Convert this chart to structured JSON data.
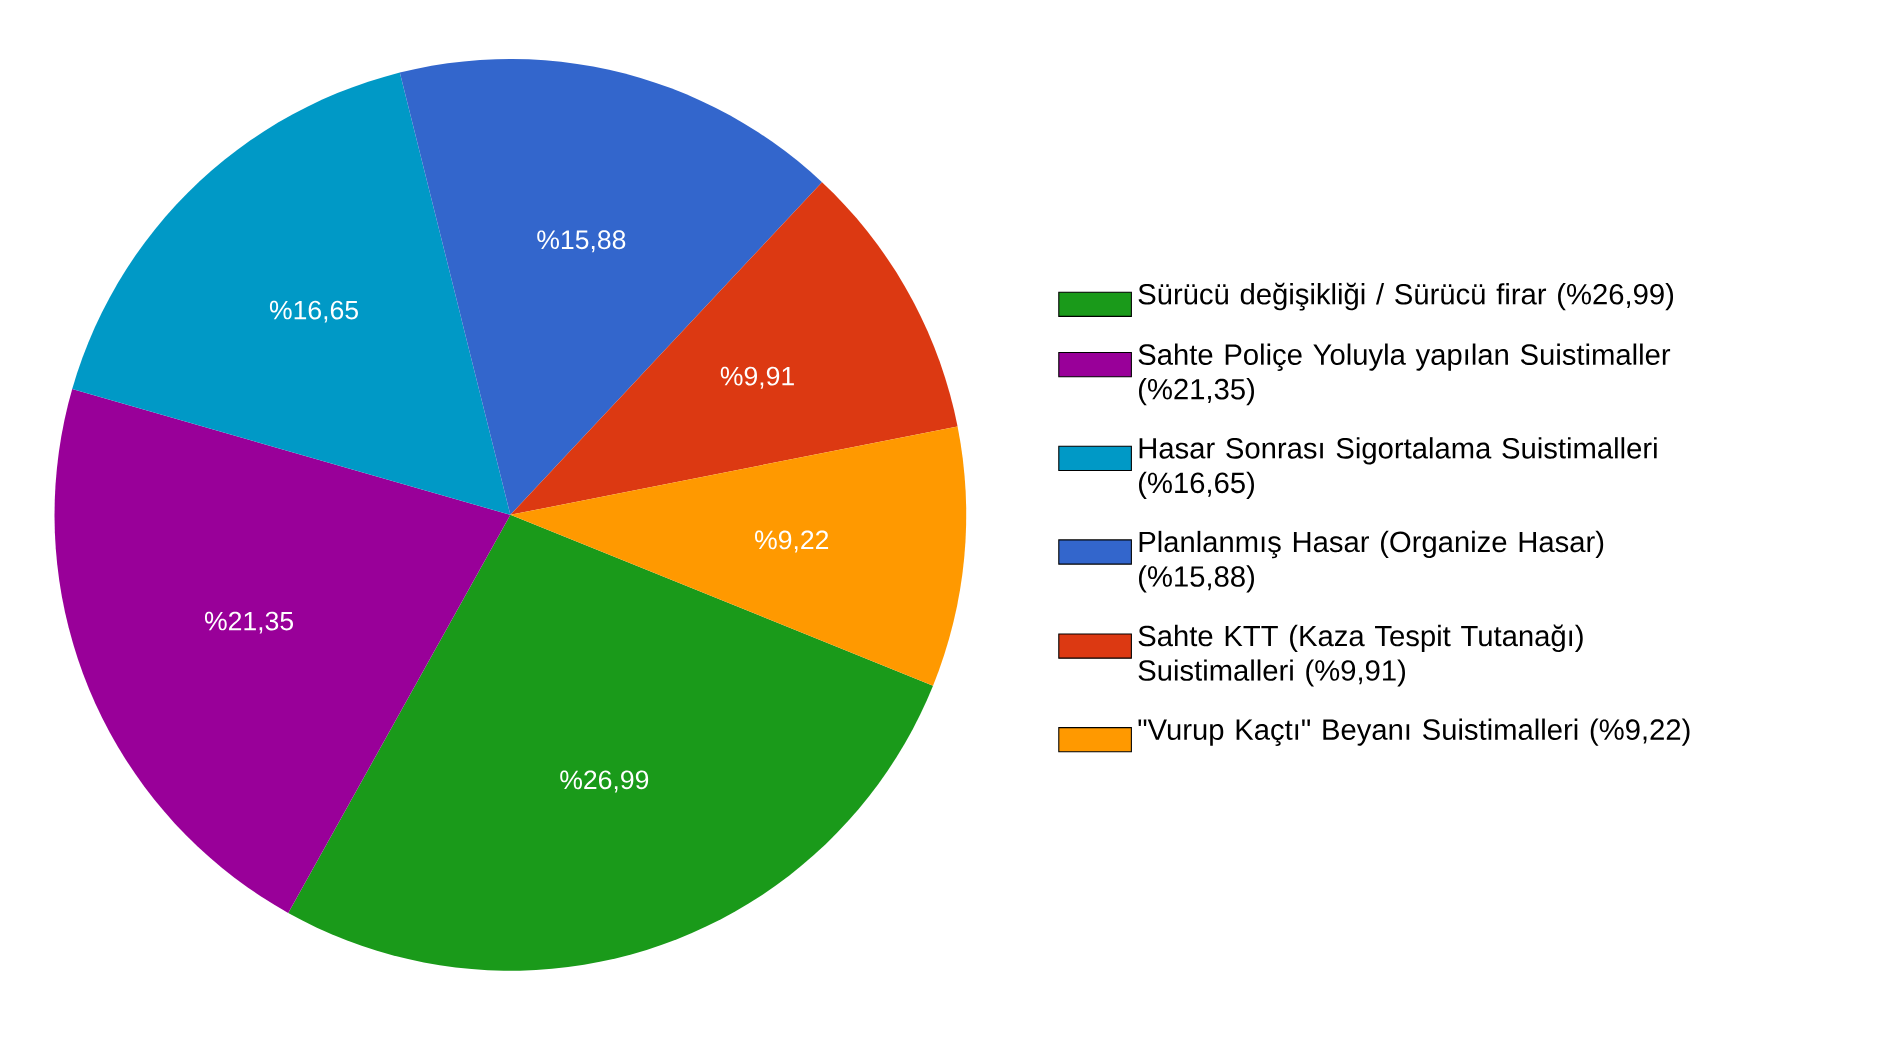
{
  "chart_data": {
    "type": "pie",
    "categories": [
      "Sürücü değişikliği / Sürücü firar (%26,99)",
      "Sahte Poliçe Yoluyla yapılan Suistimaller (%21,35)",
      "Hasar Sonrası Sigortalama Suistimalleri (%16,65)",
      "Planlanmış Hasar (Organize Hasar) (%15,88)",
      "Sahte KTT (Kaza Tespit Tutanağı) Suistimalleri (%9,91)",
      "\"Vurup Kaçtı\" Beyanı Suistimalleri (%9,22)"
    ],
    "values": [
      26.99,
      21.35,
      16.65,
      15.88,
      9.91,
      9.22
    ],
    "value_labels": [
      "%26,99",
      "%21,35",
      "%16,65",
      "%15,88",
      "%9,91",
      "%9,22"
    ],
    "colors": [
      "#1a9a1a",
      "#990099",
      "#0099c6",
      "#3366cc",
      "#dc3912",
      "#ff9900"
    ],
    "legend": "right"
  }
}
